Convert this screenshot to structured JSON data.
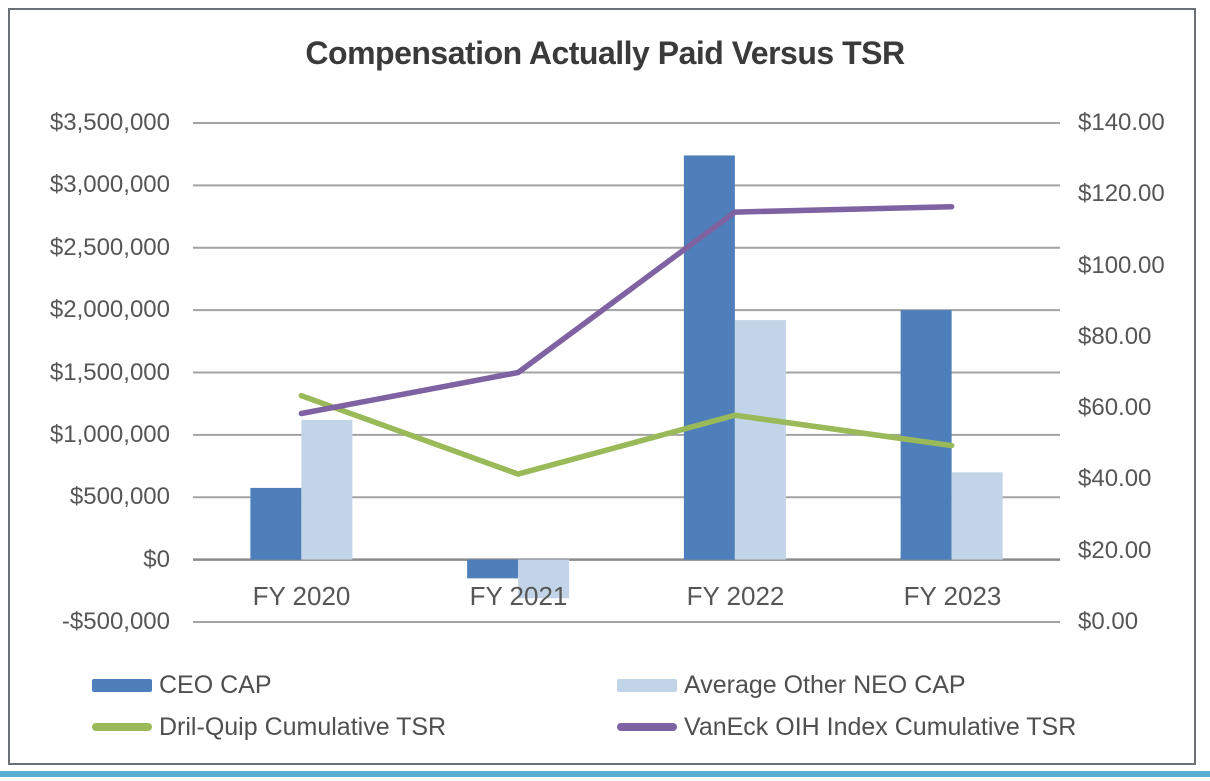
{
  "page": {
    "title": "Compensation Actually Paid Versus TSR"
  },
  "chart_data": {
    "type": "bar",
    "subtype": "combo-bar-line-dual-axis",
    "title": "Compensation Actually Paid Versus TSR",
    "categories": [
      "FY 2020",
      "FY 2021",
      "FY 2022",
      "FY 2023"
    ],
    "bar_series": [
      {
        "name": "CEO CAP",
        "axis": "left",
        "color": "#4e7fbb",
        "values": [
          575000,
          -150000,
          3240000,
          2000000
        ]
      },
      {
        "name": "Average Other NEO CAP",
        "axis": "left",
        "color": "#c2d4e8",
        "values": [
          1120000,
          -310000,
          1920000,
          700000
        ]
      }
    ],
    "line_series": [
      {
        "name": "Dril-Quip Cumulative TSR",
        "axis": "right",
        "color": "#9aba59",
        "values": [
          63.5,
          41.5,
          58,
          49.5
        ]
      },
      {
        "name": "VanEck OIH Index Cumulative TSR",
        "axis": "right",
        "color": "#7e62a1",
        "values": [
          58.5,
          70,
          115,
          116.5
        ]
      }
    ],
    "left_axis": {
      "min": -500000,
      "max": 3500000,
      "tick_step": 500000,
      "tick_labels": [
        "$3,500,000",
        "$3,000,000",
        "$2,500,000",
        "$2,000,000",
        "$1,500,000",
        "$1,000,000",
        "$500,000",
        "$0",
        "-$500,000"
      ]
    },
    "right_axis": {
      "min": 0,
      "max": 140,
      "tick_step": 20,
      "tick_labels": [
        "$140.00",
        "$120.00",
        "$100.00",
        "$80.00",
        "$60.00",
        "$40.00",
        "$20.00",
        "$0.00"
      ]
    },
    "grid": true,
    "legend_position": "bottom",
    "gridline_color": "#a3a3a3",
    "zero_line_color": "#8a8a8a",
    "frame_border_color": "#6b7177",
    "bottom_strip_color": "#58aed2"
  }
}
